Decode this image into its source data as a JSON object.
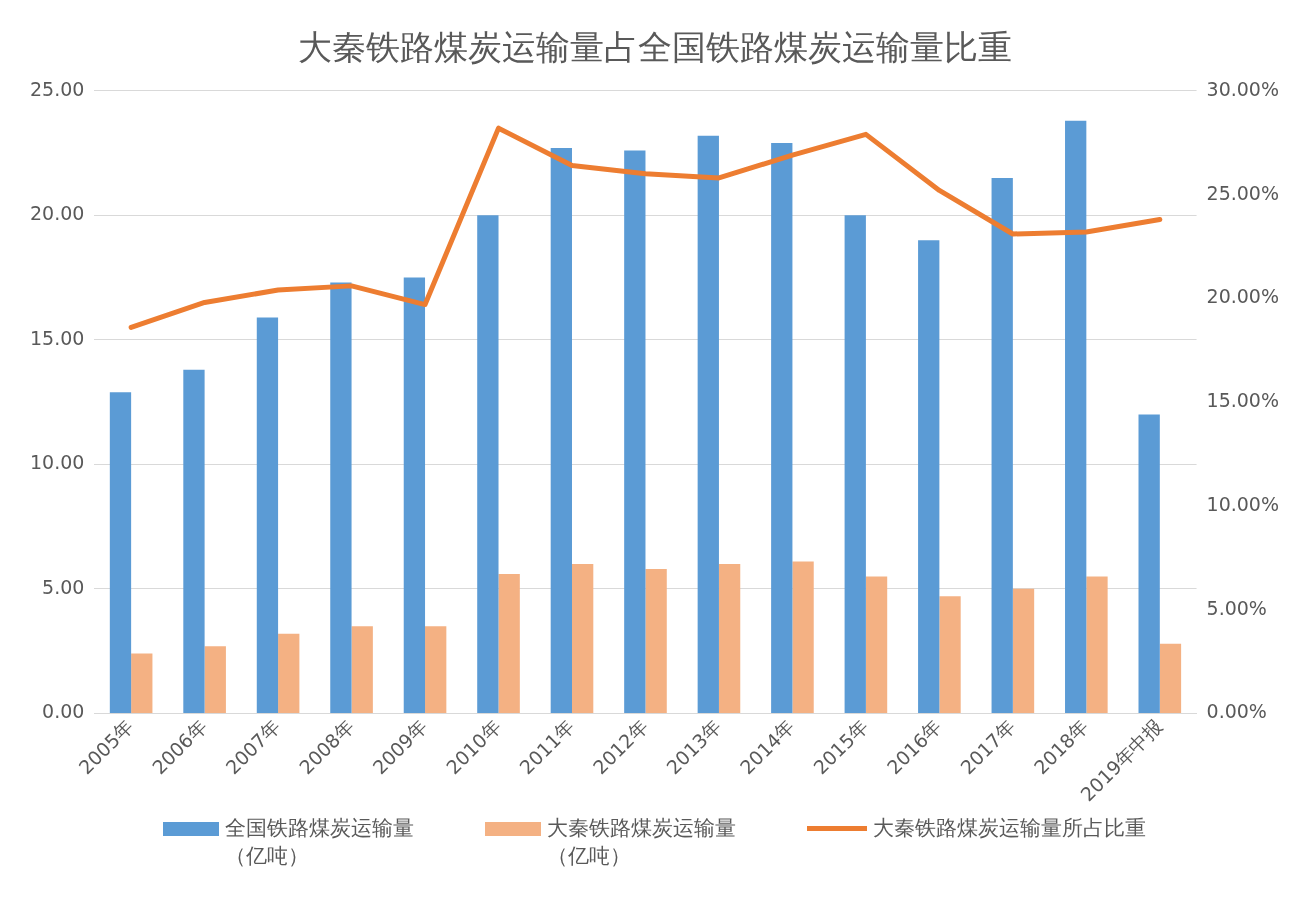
{
  "chart_data": {
    "type": "bar",
    "title": "大秦铁路煤炭运输量占全国铁路煤炭运输量比重",
    "categories": [
      "2005年",
      "2006年",
      "2007年",
      "2008年",
      "2009年",
      "2010年",
      "2011年",
      "2012年",
      "2013年",
      "2014年",
      "2015年",
      "2016年",
      "2017年",
      "2018年",
      "2019年中报"
    ],
    "series": [
      {
        "name": "全国铁路煤炭运输量（亿吨）",
        "color": "#5b9bd5",
        "values": [
          12.9,
          13.8,
          15.9,
          17.3,
          17.5,
          20.0,
          22.7,
          22.6,
          23.2,
          22.9,
          20.0,
          19.0,
          21.5,
          23.8,
          12.0
        ]
      },
      {
        "name": "大秦铁路煤炭运输量（亿吨）",
        "color": "#f4b183",
        "values": [
          2.4,
          2.7,
          3.2,
          3.5,
          3.5,
          5.6,
          6.0,
          5.8,
          6.0,
          6.1,
          5.5,
          4.7,
          5.0,
          5.5,
          2.8
        ]
      },
      {
        "name": "大秦铁路煤炭运输量所占比重",
        "type": "line",
        "axis": "y2",
        "color": "#ed7d31",
        "values": [
          18.6,
          19.8,
          20.4,
          20.6,
          19.7,
          28.2,
          26.4,
          26.0,
          25.8,
          26.9,
          27.9,
          25.2,
          23.1,
          23.2,
          23.8
        ]
      }
    ],
    "ylim": [
      0,
      25
    ],
    "yticks": [
      {
        "value": 0,
        "label": "0.00"
      },
      {
        "value": 5,
        "label": "5.00"
      },
      {
        "value": 10,
        "label": "10.00"
      },
      {
        "value": 15,
        "label": "15.00"
      },
      {
        "value": 20,
        "label": "20.00"
      },
      {
        "value": 25,
        "label": "25.00"
      }
    ],
    "y2lim": [
      0,
      30
    ],
    "y2ticks": [
      {
        "value": 0,
        "label": "0.00%"
      },
      {
        "value": 5,
        "label": "5.00%"
      },
      {
        "value": 10,
        "label": "10.00%"
      },
      {
        "value": 15,
        "label": "15.00%"
      },
      {
        "value": 20,
        "label": "20.00%"
      },
      {
        "value": 25,
        "label": "25.00%"
      },
      {
        "value": 30,
        "label": "30.00%"
      }
    ],
    "grid": "y",
    "legend": "bottom",
    "marker": "none",
    "line_style": "solid"
  }
}
